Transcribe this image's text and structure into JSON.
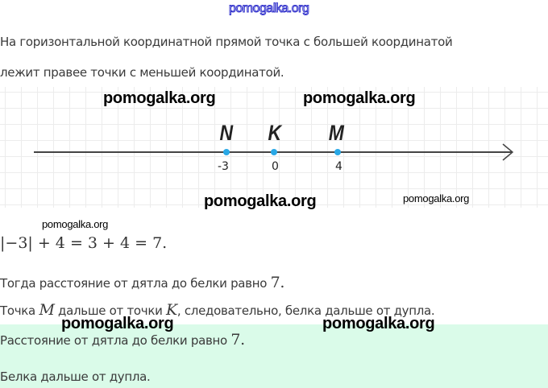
{
  "watermark": "pomogalka.org",
  "intro": {
    "line1": "На горизонтальной координатной прямой точка с большей координатой",
    "line2": "лежит правее точки с меньшей координатой."
  },
  "number_line": {
    "points": [
      {
        "label": "N",
        "value": "-3"
      },
      {
        "label": "K",
        "value": "0"
      },
      {
        "label": "M",
        "value": "4"
      }
    ],
    "point_color": "#29a8e6"
  },
  "formula": "|−3| + 4 = 3 + 4 = 7.",
  "line3": {
    "text": "Тогда расстояние от дятла до белки равно ",
    "value": "7."
  },
  "line4": {
    "a": "Точка ",
    "m": "M",
    "b": " дальше от точки ",
    "k": "K",
    "c": ", следовательно, белка дальше от дупла."
  },
  "answer": {
    "line1_text": "Расстояние от дятла до белки равно ",
    "line1_value": "7.",
    "line2": "Белка дальше от дупла.",
    "bg": "#dafbe9"
  }
}
